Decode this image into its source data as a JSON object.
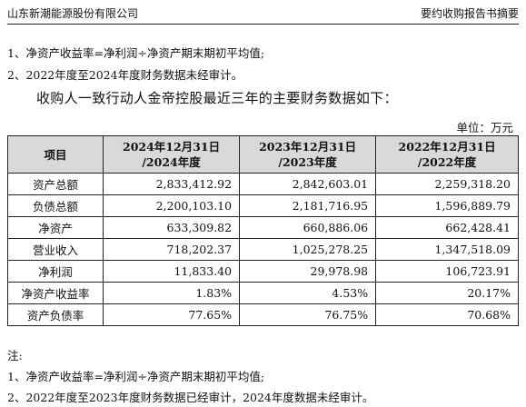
{
  "header": {
    "company": "山东新潮能源股份有限公司",
    "doc_title": "要约收购报告书摘要"
  },
  "top_notes": [
    "1、净资产收益率=净利润÷净资产期末期初平均值;",
    "2、2022年度至2024年度财务数据未经审计。"
  ],
  "intro": "收购人一致行动人金帝控股最近三年的主要财务数据如下：",
  "unit": "单位：万元",
  "table": {
    "headers": [
      "项目",
      "2024年12月31日\n/2024年度",
      "2023年12月31日\n/2023年度",
      "2022年12月31日\n/2022年度"
    ],
    "rows": [
      [
        "资产总额",
        "2,833,412.92",
        "2,842,603.01",
        "2,259,318.20"
      ],
      [
        "负债总额",
        "2,200,103.10",
        "2,181,716.95",
        "1,596,889.79"
      ],
      [
        "净资产",
        "633,309.82",
        "660,886.06",
        "662,428.41"
      ],
      [
        "营业收入",
        "718,202.37",
        "1,025,278.25",
        "1,347,518.09"
      ],
      [
        "净利润",
        "11,833.40",
        "29,978.98",
        "106,723.91"
      ],
      [
        "净资产收益率",
        "1.83%",
        "4.53%",
        "20.17%"
      ],
      [
        "资产负债率",
        "77.65%",
        "76.75%",
        "70.68%"
      ]
    ]
  },
  "bottom_notes": {
    "label": "注:",
    "items": [
      "1、净资产收益率=净利润÷净资产期末期初平均值;",
      "2、2022年度至2023年度财务数据已经审计，2024年度数据未经审计。"
    ]
  }
}
